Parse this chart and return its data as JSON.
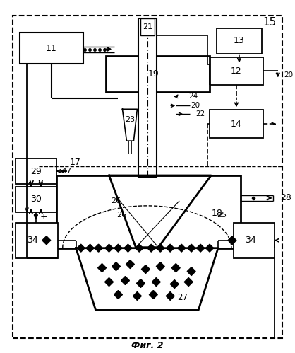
{
  "title": "Фиг. 2",
  "bg_color": "#ffffff",
  "line_color": "#000000",
  "fig_width": 4.18,
  "fig_height": 4.99,
  "dpi": 100
}
